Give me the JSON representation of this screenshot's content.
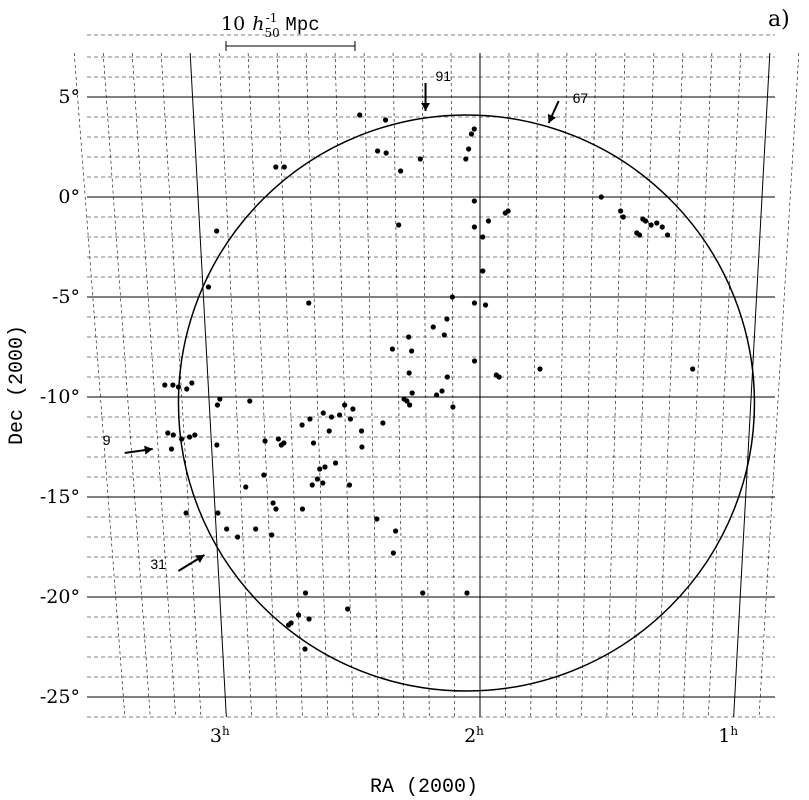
{
  "chart_data": {
    "type": "scatter",
    "panel_label": "a)",
    "xlabel": "RA (2000)",
    "ylabel": "Dec (2000)",
    "x_unit": "hours",
    "y_unit": "degrees",
    "xlim": [
      3.45,
      0.92
    ],
    "ylim": [
      -26,
      7.5
    ],
    "x_ticks": [
      {
        "value": 3,
        "label": "3",
        "sup": "h"
      },
      {
        "value": 2,
        "label": "2",
        "sup": "h"
      },
      {
        "value": 1,
        "label": "1",
        "sup": "h"
      }
    ],
    "y_ticks": [
      {
        "value": 5,
        "label": "5°"
      },
      {
        "value": 0,
        "label": "0°"
      },
      {
        "value": -5,
        "label": "-5°"
      },
      {
        "value": -10,
        "label": "-10°"
      },
      {
        "value": -15,
        "label": "-15°"
      },
      {
        "value": -20,
        "label": "-20°"
      },
      {
        "value": -25,
        "label": "-25°"
      }
    ],
    "scale_bar": {
      "length": "10",
      "h_sub": "50",
      "h_sup": "-1",
      "unit": "Mpc"
    },
    "survey_circle": {
      "center_ra": 2.05,
      "center_dec": -10.3,
      "radius_deg": 14.4
    },
    "annotations": [
      {
        "label": "91",
        "ra": 2.19,
        "dec": 4.3,
        "direction": "down"
      },
      {
        "label": "67",
        "ra": 1.76,
        "dec": 3.7,
        "direction": "down-left"
      },
      {
        "label": "9",
        "ra": 3.22,
        "dec": -12.6,
        "direction": "right"
      },
      {
        "label": "31",
        "ra": 3.05,
        "dec": -17.9,
        "direction": "up-right"
      }
    ],
    "points": [
      {
        "ra": 2.42,
        "dec": 4.1
      },
      {
        "ra": 2.33,
        "dec": 3.85
      },
      {
        "ra": 2.33,
        "dec": 2.2
      },
      {
        "ra": 2.36,
        "dec": 2.3
      },
      {
        "ra": 2.21,
        "dec": 1.9
      },
      {
        "ra": 2.28,
        "dec": 1.3
      },
      {
        "ra": 2.02,
        "dec": 3.4
      },
      {
        "ra": 2.03,
        "dec": 3.15
      },
      {
        "ra": 2.04,
        "dec": 2.4
      },
      {
        "ra": 2.05,
        "dec": 1.9
      },
      {
        "ra": 2.02,
        "dec": -0.2
      },
      {
        "ra": 1.97,
        "dec": -1.2
      },
      {
        "ra": 1.99,
        "dec": -2.0
      },
      {
        "ra": 2.02,
        "dec": -1.5
      },
      {
        "ra": 1.9,
        "dec": -0.7
      },
      {
        "ra": 1.91,
        "dec": -0.8
      },
      {
        "ra": 2.29,
        "dec": -1.4
      },
      {
        "ra": 1.99,
        "dec": -3.7
      },
      {
        "ra": 2.02,
        "dec": -5.3
      },
      {
        "ra": 1.98,
        "dec": -5.4
      },
      {
        "ra": 2.1,
        "dec": -5.0
      },
      {
        "ra": 2.12,
        "dec": -6.1
      },
      {
        "ra": 2.13,
        "dec": -6.9
      },
      {
        "ra": 2.17,
        "dec": -6.5
      },
      {
        "ra": 2.26,
        "dec": -7.0
      },
      {
        "ra": 2.25,
        "dec": -7.7
      },
      {
        "ra": 2.26,
        "dec": -8.8
      },
      {
        "ra": 2.32,
        "dec": -7.6
      },
      {
        "ra": 2.02,
        "dec": -8.2
      },
      {
        "ra": 1.94,
        "dec": -8.9
      },
      {
        "ra": 1.93,
        "dec": -9.0
      },
      {
        "ra": 1.78,
        "dec": -8.6
      },
      {
        "ra": 2.12,
        "dec": -9.0
      },
      {
        "ra": 2.14,
        "dec": -9.7
      },
      {
        "ra": 2.16,
        "dec": -9.9
      },
      {
        "ra": 2.1,
        "dec": -10.5
      },
      {
        "ra": 2.25,
        "dec": -9.8
      },
      {
        "ra": 2.27,
        "dec": -10.2
      },
      {
        "ra": 2.26,
        "dec": -10.4
      },
      {
        "ra": 2.28,
        "dec": -10.1
      },
      {
        "ra": 1.57,
        "dec": 0.0
      },
      {
        "ra": 1.5,
        "dec": -0.7
      },
      {
        "ra": 1.49,
        "dec": -1.0
      },
      {
        "ra": 1.44,
        "dec": -1.8
      },
      {
        "ra": 1.41,
        "dec": -1.2
      },
      {
        "ra": 1.39,
        "dec": -1.4
      },
      {
        "ra": 1.37,
        "dec": -1.3
      },
      {
        "ra": 1.35,
        "dec": -1.5
      },
      {
        "ra": 1.33,
        "dec": -1.9
      },
      {
        "ra": 1.42,
        "dec": -1.1
      },
      {
        "ra": 1.43,
        "dec": -1.9
      },
      {
        "ra": 1.22,
        "dec": -8.6
      },
      {
        "ra": 2.94,
        "dec": -1.7
      },
      {
        "ra": 2.98,
        "dec": -4.5
      },
      {
        "ra": 2.72,
        "dec": 1.5
      },
      {
        "ra": 2.69,
        "dec": 1.5
      },
      {
        "ra": 2.62,
        "dec": -5.3
      },
      {
        "ra": 3.16,
        "dec": -9.4
      },
      {
        "ra": 3.13,
        "dec": -9.4
      },
      {
        "ra": 3.11,
        "dec": -9.5
      },
      {
        "ra": 3.08,
        "dec": -9.6
      },
      {
        "ra": 3.06,
        "dec": -9.3
      },
      {
        "ra": 2.96,
        "dec": -10.1
      },
      {
        "ra": 2.97,
        "dec": -10.4
      },
      {
        "ra": 3.16,
        "dec": -11.8
      },
      {
        "ra": 3.14,
        "dec": -11.9
      },
      {
        "ra": 3.11,
        "dec": -12.1
      },
      {
        "ra": 3.08,
        "dec": -12.0
      },
      {
        "ra": 3.06,
        "dec": -11.9
      },
      {
        "ra": 3.15,
        "dec": -12.6
      },
      {
        "ra": 2.98,
        "dec": -12.4
      },
      {
        "ra": 2.85,
        "dec": -10.2
      },
      {
        "ra": 2.8,
        "dec": -12.2
      },
      {
        "ra": 2.75,
        "dec": -12.1
      },
      {
        "ra": 2.73,
        "dec": -12.3
      },
      {
        "ra": 2.74,
        "dec": -12.4
      },
      {
        "ra": 2.66,
        "dec": -11.4
      },
      {
        "ra": 2.63,
        "dec": -11.1
      },
      {
        "ra": 2.62,
        "dec": -12.3
      },
      {
        "ra": 2.58,
        "dec": -10.8
      },
      {
        "ra": 2.55,
        "dec": -11.0
      },
      {
        "ra": 2.52,
        "dec": -10.9
      },
      {
        "ra": 2.56,
        "dec": -11.7
      },
      {
        "ra": 2.5,
        "dec": -10.4
      },
      {
        "ra": 2.47,
        "dec": -10.6
      },
      {
        "ra": 2.48,
        "dec": -11.1
      },
      {
        "ra": 2.44,
        "dec": -11.7
      },
      {
        "ra": 2.44,
        "dec": -12.5
      },
      {
        "ra": 2.36,
        "dec": -11.3
      },
      {
        "ra": 2.54,
        "dec": -13.3
      },
      {
        "ra": 2.58,
        "dec": -13.5
      },
      {
        "ra": 2.6,
        "dec": -13.6
      },
      {
        "ra": 2.61,
        "dec": -14.1
      },
      {
        "ra": 2.63,
        "dec": -14.4
      },
      {
        "ra": 2.59,
        "dec": -14.3
      },
      {
        "ra": 2.49,
        "dec": -14.4
      },
      {
        "ra": 2.67,
        "dec": -15.6
      },
      {
        "ra": 2.78,
        "dec": -15.3
      },
      {
        "ra": 2.81,
        "dec": -13.9
      },
      {
        "ra": 2.88,
        "dec": -14.5
      },
      {
        "ra": 2.99,
        "dec": -15.8
      },
      {
        "ra": 3.11,
        "dec": -15.8
      },
      {
        "ra": 2.96,
        "dec": -16.6
      },
      {
        "ra": 2.92,
        "dec": -17.0
      },
      {
        "ra": 2.85,
        "dec": -16.6
      },
      {
        "ra": 2.79,
        "dec": -16.9
      },
      {
        "ra": 2.77,
        "dec": -15.6
      },
      {
        "ra": 2.39,
        "dec": -16.1
      },
      {
        "ra": 2.32,
        "dec": -16.7
      },
      {
        "ra": 2.33,
        "dec": -17.8
      },
      {
        "ra": 2.67,
        "dec": -19.8
      },
      {
        "ra": 2.51,
        "dec": -20.6
      },
      {
        "ra": 2.7,
        "dec": -20.9
      },
      {
        "ra": 2.73,
        "dec": -21.3
      },
      {
        "ra": 2.74,
        "dec": -21.4
      },
      {
        "ra": 2.66,
        "dec": -21.1
      },
      {
        "ra": 2.68,
        "dec": -22.6
      },
      {
        "ra": 2.22,
        "dec": -19.8
      },
      {
        "ra": 2.05,
        "dec": -19.8
      }
    ]
  }
}
